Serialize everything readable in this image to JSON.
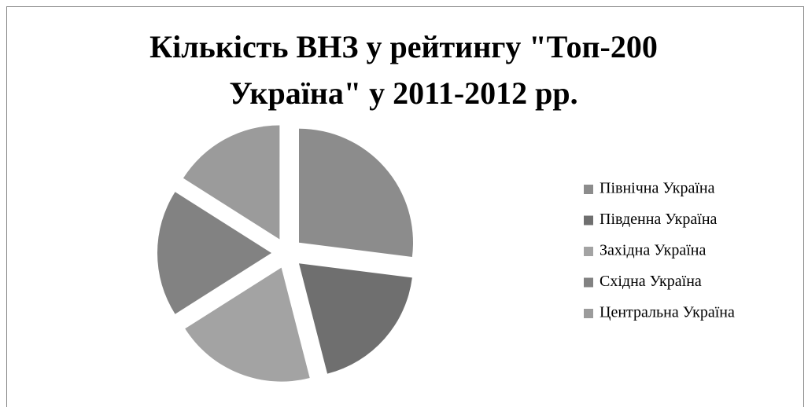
{
  "chart_data": {
    "type": "pie",
    "title": [
      "Кількість ВНЗ у рейтингу \"Топ-200",
      "Україна\" у 2011-2012 рр."
    ],
    "categories": [
      "Північна Україна",
      "Південна Україна",
      "Західна Україна",
      "Східна Україна",
      "Центральна Україна"
    ],
    "values": [
      27,
      19,
      20,
      18,
      16
    ],
    "colors": [
      "#8c8c8c",
      "#6f6f6f",
      "#a3a3a3",
      "#828282",
      "#9b9b9b"
    ],
    "legend": "right"
  }
}
